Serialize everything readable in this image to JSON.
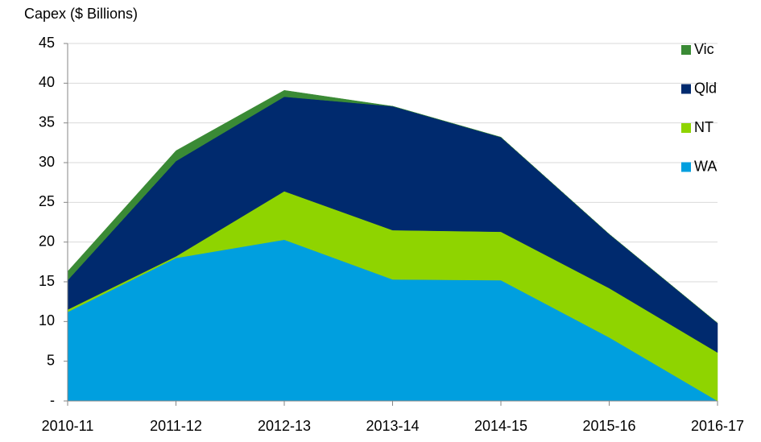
{
  "chart_data": {
    "type": "stacked-area",
    "y_label": "Capex ($ Billions)",
    "categories": [
      "2010-11",
      "2011-12",
      "2012-13",
      "2013-14",
      "2014-15",
      "2015-16",
      "2016-17"
    ],
    "series": [
      {
        "name": "WA",
        "color": "#009fdf",
        "values": [
          11.2,
          18.0,
          20.3,
          15.3,
          15.2,
          8.0,
          0
        ]
      },
      {
        "name": "NT",
        "color": "#8fd400",
        "values": [
          0.3,
          0.2,
          6.1,
          6.2,
          6.1,
          6.2,
          6.1
        ]
      },
      {
        "name": "Qld",
        "color": "#002a6e",
        "values": [
          3.7,
          12.0,
          11.9,
          15.6,
          11.9,
          6.8,
          3.7
        ]
      },
      {
        "name": "Vic",
        "color": "#3a8a35",
        "values": [
          1.1,
          1.3,
          0.8,
          0,
          0,
          0,
          0
        ]
      }
    ],
    "ylim": [
      0,
      45
    ],
    "yticks": [
      {
        "value": 0,
        "label": "-"
      },
      5,
      10,
      15,
      20,
      25,
      30,
      35,
      40,
      45
    ],
    "grid": true,
    "legend": "right"
  }
}
